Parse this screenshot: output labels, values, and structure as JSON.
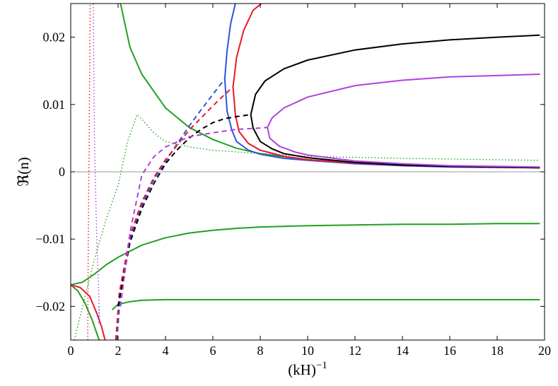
{
  "chart_data": {
    "type": "line",
    "xlabel": "(kH)",
    "xlabel_superscript": "−1",
    "ylabel": "ℜ(n)",
    "xlim": [
      0,
      20
    ],
    "ylim": [
      -0.025,
      0.025
    ],
    "x_ticks": [
      0,
      2,
      4,
      6,
      8,
      10,
      12,
      14,
      16,
      18,
      20
    ],
    "x_tick_labels": [
      "0",
      "2",
      "4",
      "6",
      "8",
      "10",
      "12",
      "14",
      "16",
      "18",
      "20"
    ],
    "y_ticks": [
      -0.02,
      -0.01,
      0,
      0.01,
      0.02
    ],
    "y_tick_labels": [
      "−0.02",
      "−0.01",
      "0",
      "0.01",
      "0.02"
    ],
    "grid": false,
    "reference_line": {
      "y": 0,
      "color": "#999999"
    },
    "series": [
      {
        "color": "#22a022",
        "style": "solid",
        "points": [
          [
            2.1,
            0.025
          ],
          [
            2.5,
            0.0185
          ],
          [
            3,
            0.0145
          ],
          [
            4,
            0.0095
          ],
          [
            5,
            0.0066
          ],
          [
            6,
            0.0048
          ],
          [
            7,
            0.0035
          ],
          [
            8,
            0.0027
          ],
          [
            10,
            0.0018
          ],
          [
            12,
            0.0013
          ],
          [
            14,
            0.001
          ],
          [
            16,
            0.0008
          ],
          [
            18,
            0.0007
          ],
          [
            19.8,
            0.0006
          ]
        ]
      },
      {
        "color": "#22a022",
        "style": "solid",
        "points": [
          [
            0,
            -0.0168
          ],
          [
            0.5,
            -0.0164
          ],
          [
            1,
            -0.0152
          ],
          [
            1.5,
            -0.0138
          ],
          [
            2,
            -0.0127
          ],
          [
            3,
            -0.0109
          ],
          [
            4,
            -0.0098
          ],
          [
            5,
            -0.0091
          ],
          [
            6,
            -0.0087
          ],
          [
            7,
            -0.0084
          ],
          [
            8,
            -0.0082
          ],
          [
            10,
            -0.008
          ],
          [
            12,
            -0.0079
          ],
          [
            14,
            -0.0078
          ],
          [
            16,
            -0.0078
          ],
          [
            18,
            -0.0077
          ],
          [
            19.8,
            -0.0077
          ]
        ]
      },
      {
        "color": "#22a022",
        "style": "solid",
        "points": [
          [
            0,
            -0.0168
          ],
          [
            0.3,
            -0.0177
          ],
          [
            0.6,
            -0.0195
          ],
          [
            0.9,
            -0.022
          ],
          [
            1.2,
            -0.025
          ]
        ]
      },
      {
        "color": "#22a022",
        "style": "solid",
        "points": [
          [
            1.75,
            -0.0205
          ],
          [
            2,
            -0.0197
          ],
          [
            2.5,
            -0.0193
          ],
          [
            3,
            -0.0191
          ],
          [
            4,
            -0.019
          ],
          [
            6,
            -0.019
          ],
          [
            10,
            -0.019
          ],
          [
            15,
            -0.019
          ],
          [
            19.8,
            -0.019
          ]
        ]
      },
      {
        "color": "#22a022",
        "style": "dotted",
        "points": [
          [
            0.15,
            -0.025
          ],
          [
            0.5,
            -0.02
          ],
          [
            1,
            -0.013
          ],
          [
            1.5,
            -0.007
          ],
          [
            2,
            -0.002
          ],
          [
            2.4,
            0.0045
          ],
          [
            2.8,
            0.0085
          ],
          [
            3,
            0.0078
          ],
          [
            3.5,
            0.0058
          ],
          [
            4,
            0.0045
          ],
          [
            5,
            0.0037
          ],
          [
            6,
            0.0032
          ],
          [
            8,
            0.0027
          ],
          [
            10,
            0.0023
          ],
          [
            14,
            0.002
          ],
          [
            19.8,
            0.0017
          ]
        ]
      },
      {
        "color": "#e8172a",
        "style": "solid",
        "points": [
          [
            0,
            -0.0168
          ],
          [
            0.4,
            -0.0172
          ],
          [
            0.8,
            -0.0185
          ],
          [
            1.1,
            -0.021
          ],
          [
            1.3,
            -0.023
          ],
          [
            1.45,
            -0.025
          ]
        ]
      },
      {
        "color": "#e8172a",
        "style": "dotted",
        "points": [
          [
            0.72,
            -0.025
          ],
          [
            0.74,
            -0.01
          ],
          [
            0.78,
            0.005
          ],
          [
            0.82,
            0.025
          ]
        ]
      },
      {
        "color": "#b040e0",
        "style": "dotted",
        "points": [
          [
            1.22,
            -0.022
          ],
          [
            1.1,
            -0.01
          ],
          [
            1.0,
            0.005
          ],
          [
            0.95,
            0.025
          ]
        ]
      },
      {
        "color": "#2a55e0",
        "style": "dotted",
        "points": [
          [
            1.18,
            -0.0225
          ],
          [
            1.2,
            -0.02
          ]
        ]
      },
      {
        "color": "#2a55e0",
        "style": "dashed",
        "points": [
          [
            1.95,
            -0.025
          ],
          [
            2.1,
            -0.018
          ],
          [
            2.5,
            -0.01
          ],
          [
            3,
            -0.005
          ],
          [
            3.5,
            -0.0012
          ],
          [
            4,
            0.0015
          ],
          [
            4.5,
            0.0042
          ],
          [
            5,
            0.0068
          ],
          [
            5.5,
            0.0092
          ],
          [
            6,
            0.0115
          ],
          [
            6.5,
            0.0138
          ]
        ]
      },
      {
        "color": "#2a55e0",
        "style": "solid",
        "points": [
          [
            6.5,
            0.0138
          ],
          [
            6.6,
            0.018
          ],
          [
            6.75,
            0.022
          ],
          [
            6.95,
            0.025
          ]
        ]
      },
      {
        "color": "#2a55e0",
        "style": "solid",
        "points": [
          [
            6.5,
            0.0138
          ],
          [
            6.6,
            0.009
          ],
          [
            6.8,
            0.0062
          ],
          [
            7,
            0.0045
          ],
          [
            7.5,
            0.0032
          ],
          [
            8,
            0.0026
          ],
          [
            9,
            0.002
          ],
          [
            10,
            0.0017
          ],
          [
            12,
            0.0012
          ],
          [
            14,
            0.0009
          ],
          [
            16,
            0.0007
          ],
          [
            19.8,
            0.0006
          ]
        ]
      },
      {
        "color": "#e8172a",
        "style": "dashed",
        "points": [
          [
            1.9,
            -0.025
          ],
          [
            2.05,
            -0.018
          ],
          [
            2.5,
            -0.0095
          ],
          [
            3,
            -0.0045
          ],
          [
            3.5,
            -0.0009
          ],
          [
            4,
            0.0018
          ],
          [
            4.5,
            0.004
          ],
          [
            5,
            0.0062
          ],
          [
            5.5,
            0.008
          ],
          [
            6,
            0.0098
          ],
          [
            6.5,
            0.0115
          ],
          [
            6.85,
            0.0126
          ]
        ]
      },
      {
        "color": "#e8172a",
        "style": "solid",
        "points": [
          [
            6.85,
            0.0126
          ],
          [
            7,
            0.017
          ],
          [
            7.3,
            0.021
          ],
          [
            7.7,
            0.024
          ],
          [
            8.05,
            0.025
          ]
        ]
      },
      {
        "color": "#e8172a",
        "style": "solid",
        "points": [
          [
            6.85,
            0.0126
          ],
          [
            6.95,
            0.0085
          ],
          [
            7.1,
            0.006
          ],
          [
            7.5,
            0.0042
          ],
          [
            8,
            0.0032
          ],
          [
            9,
            0.0023
          ],
          [
            10,
            0.0018
          ],
          [
            12,
            0.0013
          ],
          [
            14,
            0.001
          ],
          [
            16,
            0.0008
          ],
          [
            19.8,
            0.0006
          ]
        ]
      },
      {
        "color": "#000000",
        "style": "dashed",
        "points": [
          [
            2,
            -0.02
          ],
          [
            2.5,
            -0.0105
          ],
          [
            3,
            -0.0055
          ],
          [
            3.5,
            -0.0018
          ],
          [
            4,
            0.0012
          ],
          [
            4.5,
            0.0033
          ],
          [
            5,
            0.005
          ],
          [
            5.5,
            0.0063
          ],
          [
            6,
            0.0073
          ],
          [
            6.5,
            0.0079
          ],
          [
            7,
            0.0082
          ],
          [
            7.6,
            0.0085
          ]
        ]
      },
      {
        "color": "#000000",
        "style": "solid",
        "points": [
          [
            7.6,
            0.0085
          ],
          [
            7.8,
            0.0115
          ],
          [
            8.2,
            0.0135
          ],
          [
            9,
            0.0153
          ],
          [
            10,
            0.0166
          ],
          [
            12,
            0.0181
          ],
          [
            14,
            0.019
          ],
          [
            16,
            0.0196
          ],
          [
            18,
            0.02
          ],
          [
            19.8,
            0.0203
          ]
        ]
      },
      {
        "color": "#000000",
        "style": "solid",
        "points": [
          [
            7.6,
            0.0085
          ],
          [
            7.7,
            0.0065
          ],
          [
            8,
            0.0045
          ],
          [
            8.5,
            0.0034
          ],
          [
            9,
            0.0027
          ],
          [
            10,
            0.0021
          ],
          [
            12,
            0.0014
          ],
          [
            14,
            0.001
          ],
          [
            16,
            0.0008
          ],
          [
            19.8,
            0.0006
          ]
        ]
      },
      {
        "color": "#b040e0",
        "style": "dashed",
        "points": [
          [
            2.1,
            -0.02
          ],
          [
            2.5,
            -0.009
          ],
          [
            3,
            -0.0005
          ],
          [
            3.5,
            0.0022
          ],
          [
            4,
            0.0037
          ],
          [
            5,
            0.0052
          ],
          [
            6,
            0.0058
          ],
          [
            7,
            0.0063
          ],
          [
            8,
            0.0065
          ],
          [
            8.3,
            0.0066
          ]
        ]
      },
      {
        "color": "#b040e0",
        "style": "solid",
        "points": [
          [
            8.3,
            0.0066
          ],
          [
            8.5,
            0.008
          ],
          [
            9,
            0.0095
          ],
          [
            10,
            0.0111
          ],
          [
            12,
            0.0128
          ],
          [
            14,
            0.0136
          ],
          [
            16,
            0.0141
          ],
          [
            18,
            0.0143
          ],
          [
            19.8,
            0.0145
          ]
        ]
      },
      {
        "color": "#b040e0",
        "style": "solid",
        "points": [
          [
            8.3,
            0.0066
          ],
          [
            8.4,
            0.005
          ],
          [
            8.8,
            0.0038
          ],
          [
            9.5,
            0.0029
          ],
          [
            10,
            0.0025
          ],
          [
            12,
            0.0016
          ],
          [
            14,
            0.0012
          ],
          [
            16,
            0.0009
          ],
          [
            19.8,
            0.0007
          ]
        ]
      }
    ]
  }
}
